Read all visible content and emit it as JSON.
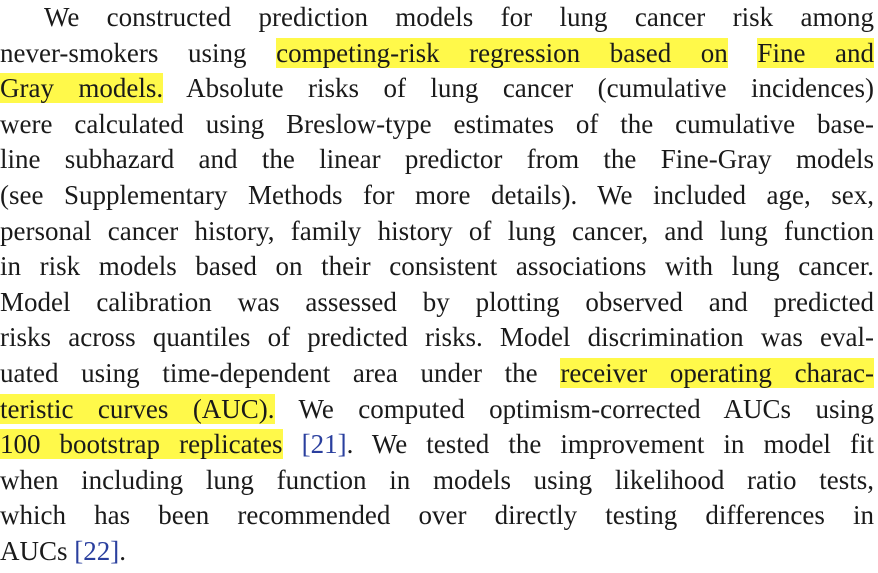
{
  "lines": [
    [
      {
        "text": "We constructed prediction models for lung cancer risk among",
        "style": "plain"
      }
    ],
    [
      {
        "text": "never-smokers using ",
        "style": "plain"
      },
      {
        "text": "competing-risk regression based on",
        "style": "highlight"
      },
      {
        "text": " ",
        "style": "plain"
      },
      {
        "text": "Fine and",
        "style": "highlight"
      }
    ],
    [
      {
        "text": "Gray models.",
        "style": "highlight"
      },
      {
        "text": " Absolute risks of lung cancer (cumulative incidences)",
        "style": "plain"
      }
    ],
    [
      {
        "text": "were calculated using Breslow-type estimates of the cumulative base-",
        "style": "plain"
      }
    ],
    [
      {
        "text": "line subhazard and the linear predictor from the Fine-Gray models",
        "style": "plain"
      }
    ],
    [
      {
        "text": "(see Supplementary Methods for more details). We included age, sex,",
        "style": "plain"
      }
    ],
    [
      {
        "text": "personal cancer history, family history of lung cancer, and lung function",
        "style": "plain"
      }
    ],
    [
      {
        "text": "in risk models based on their consistent associations with lung cancer.",
        "style": "plain"
      }
    ],
    [
      {
        "text": "Model calibration was assessed by plotting observed and predicted",
        "style": "plain"
      }
    ],
    [
      {
        "text": "risks across quantiles of predicted risks. Model discrimination was eval-",
        "style": "plain"
      }
    ],
    [
      {
        "text": "uated using time-dependent area under the ",
        "style": "plain"
      },
      {
        "text": "receiver operating charac-",
        "style": "highlight"
      }
    ],
    [
      {
        "text": "teristic curves (AUC).",
        "style": "highlight"
      },
      {
        "text": " We computed optimism-corrected AUCs using",
        "style": "plain"
      }
    ],
    [
      {
        "text": "100 bootstrap replicates",
        "style": "highlight"
      },
      {
        "text": " ",
        "style": "plain"
      },
      {
        "text": "[21]",
        "style": "citation"
      },
      {
        "text": ". We tested the improvement in model fit",
        "style": "plain"
      }
    ],
    [
      {
        "text": "when including lung function in models using likelihood ratio tests,",
        "style": "plain"
      }
    ],
    [
      {
        "text": "which has been recommended over directly testing differences in",
        "style": "plain"
      }
    ],
    [
      {
        "text": "AUCs ",
        "style": "plain"
      },
      {
        "text": "[22]",
        "style": "citation"
      },
      {
        "text": ".",
        "style": "plain"
      }
    ]
  ]
}
